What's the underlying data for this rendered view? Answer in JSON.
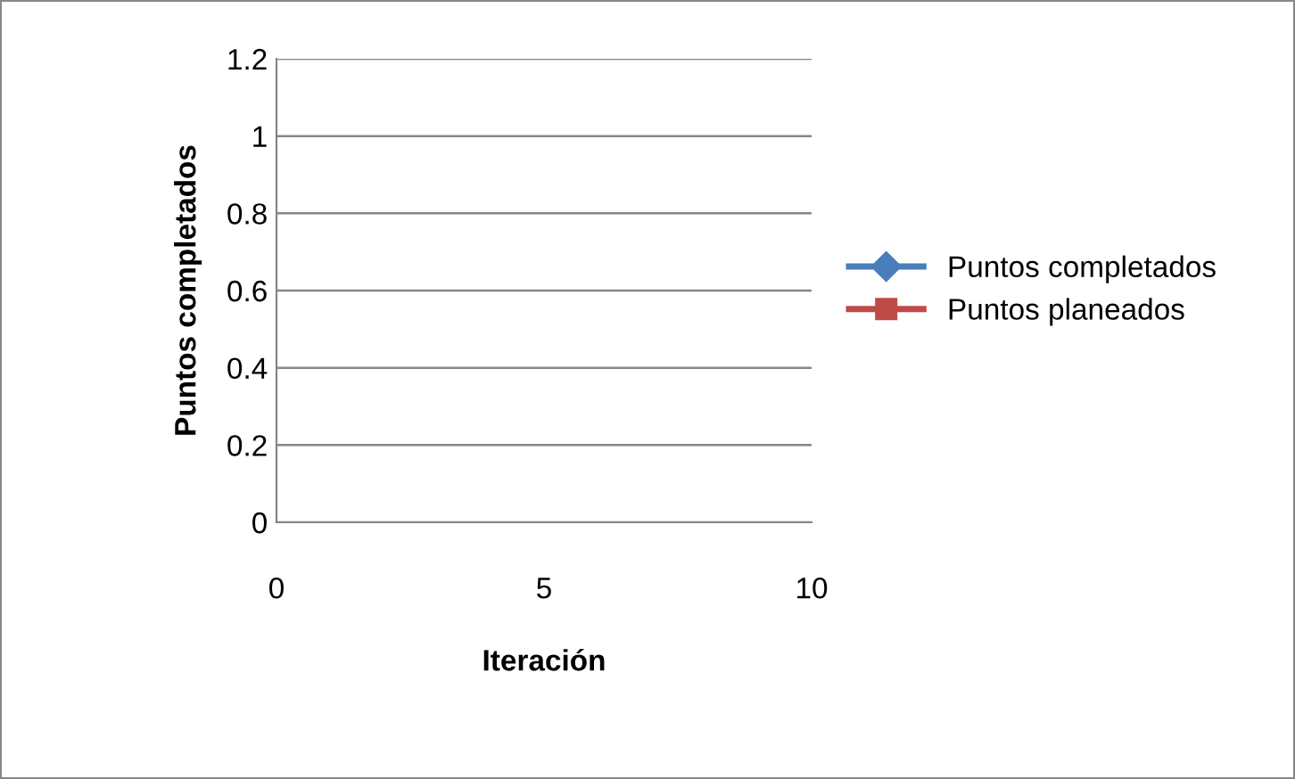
{
  "chart_data": {
    "type": "line",
    "xlabel": "Iteración",
    "ylabel": "Puntos completados",
    "series": [
      {
        "name": "Puntos completados",
        "color": "#4a7ebb",
        "marker": "diamond",
        "values": [
          null,
          null,
          null
        ]
      },
      {
        "name": "Puntos planeados",
        "color": "#be4b48",
        "marker": "square",
        "values": [
          null,
          null,
          null
        ]
      }
    ],
    "categories": [
      "0",
      "5",
      "10"
    ],
    "ylim": [
      0,
      1.2
    ],
    "yticks": [
      0,
      0.2,
      0.4,
      0.6,
      0.8,
      1,
      1.2
    ],
    "grid": "y",
    "legend": "right",
    "line_style": "solid"
  }
}
